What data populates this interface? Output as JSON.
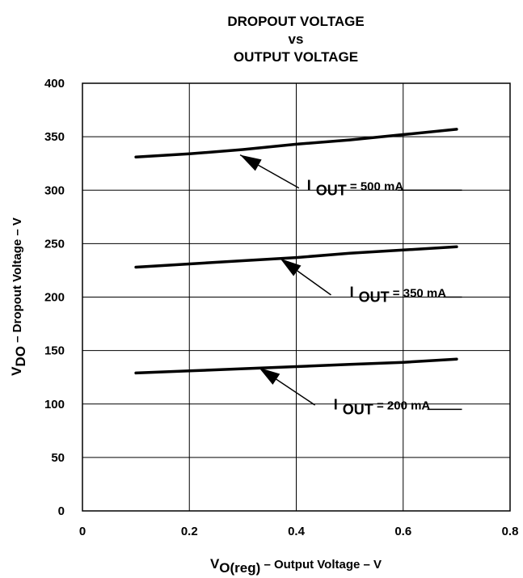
{
  "chart_data": {
    "type": "line",
    "title": [
      "DROPOUT VOLTAGE",
      "vs",
      "OUTPUT VOLTAGE"
    ],
    "xlabel": {
      "main": "V",
      "sub": "O(reg)",
      "rest": " – Output Voltage – V"
    },
    "ylabel": {
      "main": "V",
      "sub": "DO",
      "rest": " – Dropout Voltage – V"
    },
    "xlim": [
      0,
      0.8
    ],
    "ylim": [
      0,
      400
    ],
    "x_ticks": [
      "0",
      "0.2",
      "0.4",
      "0.6",
      "0.8"
    ],
    "y_ticks": [
      "0",
      "50",
      "100",
      "150",
      "200",
      "250",
      "300",
      "350",
      "400"
    ],
    "grid": true,
    "series": [
      {
        "annotation": {
          "prefix": "I",
          "sub": "OUT",
          "rest": " = 500 mA"
        },
        "x": [
          0.1,
          0.2,
          0.3,
          0.4,
          0.5,
          0.6,
          0.7
        ],
        "y": [
          331,
          334,
          338,
          343,
          347,
          352,
          357
        ]
      },
      {
        "annotation": {
          "prefix": "I",
          "sub": "OUT",
          "rest": " = 350 mA"
        },
        "x": [
          0.1,
          0.2,
          0.3,
          0.4,
          0.5,
          0.6,
          0.7
        ],
        "y": [
          228,
          231,
          234,
          237,
          241,
          244,
          247
        ]
      },
      {
        "annotation": {
          "prefix": "I",
          "sub": "OUT",
          "rest": " = 200 mA"
        },
        "x": [
          0.1,
          0.2,
          0.3,
          0.4,
          0.5,
          0.6,
          0.7
        ],
        "y": [
          129,
          131,
          133,
          135,
          137,
          139,
          142
        ]
      }
    ]
  }
}
